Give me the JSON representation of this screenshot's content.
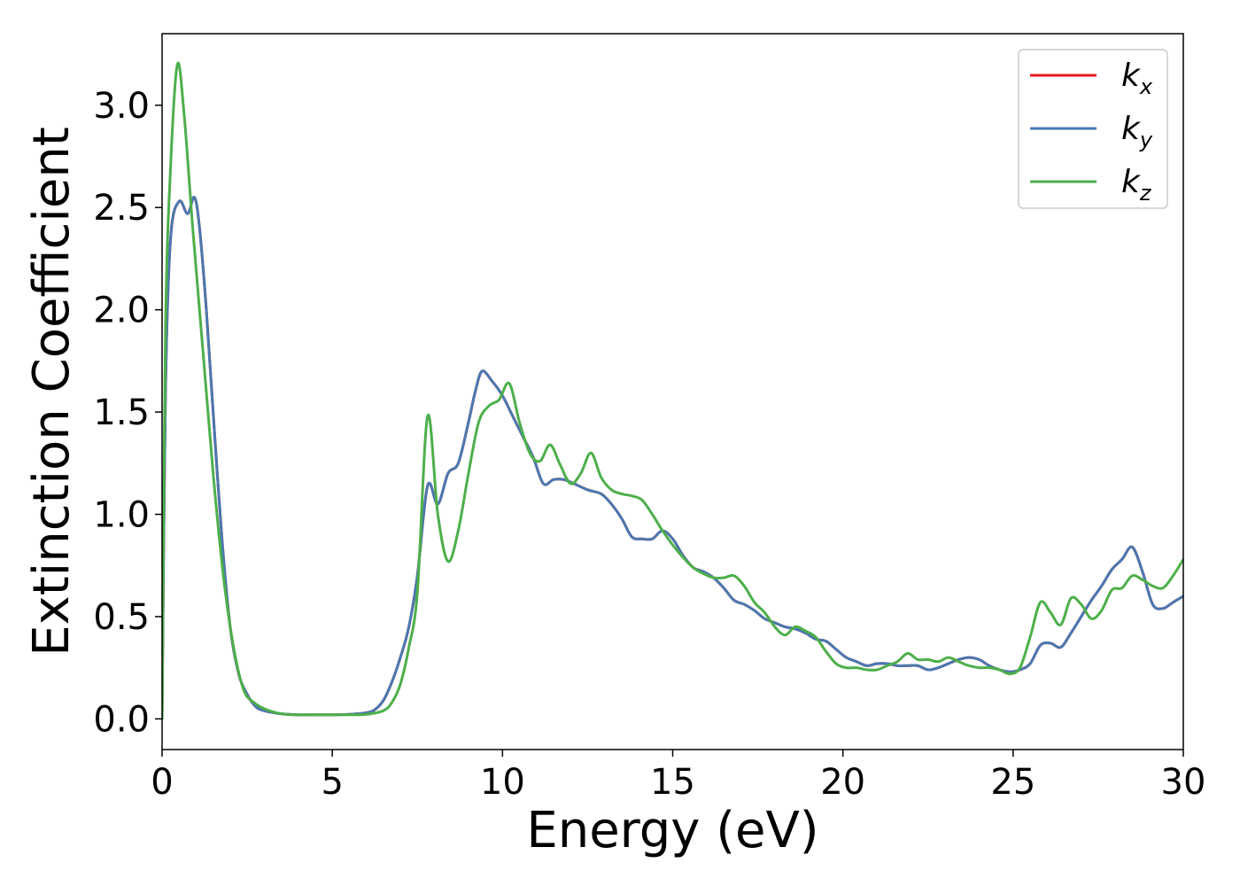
{
  "chart_data": {
    "type": "line",
    "title": "",
    "xlabel": "Energy (eV)",
    "ylabel": "Extinction Coefficient",
    "xlim": [
      0,
      30
    ],
    "ylim": [
      -0.15,
      3.35
    ],
    "xticks": [
      0,
      5,
      10,
      15,
      20,
      25,
      30
    ],
    "xtick_labels": [
      "0",
      "5",
      "10",
      "15",
      "20",
      "25",
      "30"
    ],
    "yticks": [
      0.0,
      0.5,
      1.0,
      1.5,
      2.0,
      2.5,
      3.0
    ],
    "ytick_labels": [
      "0.0",
      "0.5",
      "1.0",
      "1.5",
      "2.0",
      "2.5",
      "3.0"
    ],
    "grid": false,
    "legend_position": "top-right",
    "series": [
      {
        "name": "k_x",
        "legend_main": "k",
        "legend_sub": "x",
        "color": "#e41a1c",
        "x": [
          0,
          0.1,
          0.25,
          0.5,
          0.75,
          0.95,
          1.1,
          1.3,
          1.5,
          1.75,
          2.0,
          2.25,
          2.5,
          2.75,
          3.0,
          3.5,
          4.0,
          4.5,
          5.0,
          5.5,
          6.0,
          6.25,
          6.5,
          6.75,
          7.0,
          7.25,
          7.5,
          7.8,
          8.1,
          8.4,
          8.7,
          9.0,
          9.2,
          9.4,
          9.7,
          10.0,
          10.3,
          10.6,
          10.9,
          11.2,
          11.5,
          11.8,
          12.1,
          12.5,
          12.9,
          13.2,
          13.5,
          13.8,
          14.1,
          14.4,
          14.7,
          15.0,
          15.3,
          15.6,
          15.9,
          16.2,
          16.5,
          16.8,
          17.1,
          17.4,
          17.7,
          18.0,
          18.3,
          18.6,
          18.9,
          19.2,
          19.5,
          19.8,
          20.1,
          20.4,
          20.7,
          21.0,
          21.3,
          21.6,
          21.9,
          22.2,
          22.5,
          22.8,
          23.1,
          23.4,
          23.7,
          24.0,
          24.3,
          24.6,
          24.9,
          25.2,
          25.5,
          25.8,
          26.1,
          26.4,
          26.7,
          27.0,
          27.3,
          27.6,
          27.9,
          28.2,
          28.5,
          28.8,
          29.1,
          29.4,
          29.7,
          30.0
        ],
        "y": [
          0.0,
          1.6,
          2.35,
          2.53,
          2.47,
          2.55,
          2.4,
          2.0,
          1.5,
          0.9,
          0.45,
          0.22,
          0.12,
          0.06,
          0.04,
          0.025,
          0.02,
          0.02,
          0.02,
          0.022,
          0.03,
          0.045,
          0.09,
          0.18,
          0.3,
          0.45,
          0.7,
          1.14,
          1.05,
          1.2,
          1.25,
          1.45,
          1.6,
          1.7,
          1.65,
          1.58,
          1.48,
          1.38,
          1.28,
          1.15,
          1.17,
          1.17,
          1.15,
          1.12,
          1.1,
          1.05,
          0.98,
          0.89,
          0.88,
          0.88,
          0.92,
          0.88,
          0.8,
          0.74,
          0.72,
          0.69,
          0.64,
          0.58,
          0.56,
          0.53,
          0.49,
          0.47,
          0.45,
          0.44,
          0.42,
          0.39,
          0.38,
          0.34,
          0.3,
          0.28,
          0.26,
          0.27,
          0.27,
          0.26,
          0.26,
          0.26,
          0.24,
          0.25,
          0.27,
          0.29,
          0.3,
          0.29,
          0.26,
          0.24,
          0.23,
          0.24,
          0.27,
          0.36,
          0.37,
          0.35,
          0.42,
          0.5,
          0.58,
          0.65,
          0.73,
          0.78,
          0.84,
          0.72,
          0.56,
          0.54,
          0.57,
          0.6
        ]
      },
      {
        "name": "k_y",
        "legend_main": "k",
        "legend_sub": "y",
        "color": "#4a78b0",
        "x": [
          0,
          0.1,
          0.25,
          0.5,
          0.75,
          0.95,
          1.1,
          1.3,
          1.5,
          1.75,
          2.0,
          2.25,
          2.5,
          2.75,
          3.0,
          3.5,
          4.0,
          4.5,
          5.0,
          5.5,
          6.0,
          6.25,
          6.5,
          6.75,
          7.0,
          7.25,
          7.5,
          7.8,
          8.1,
          8.4,
          8.7,
          9.0,
          9.2,
          9.4,
          9.7,
          10.0,
          10.3,
          10.6,
          10.9,
          11.2,
          11.5,
          11.8,
          12.1,
          12.5,
          12.9,
          13.2,
          13.5,
          13.8,
          14.1,
          14.4,
          14.7,
          15.0,
          15.3,
          15.6,
          15.9,
          16.2,
          16.5,
          16.8,
          17.1,
          17.4,
          17.7,
          18.0,
          18.3,
          18.6,
          18.9,
          19.2,
          19.5,
          19.8,
          20.1,
          20.4,
          20.7,
          21.0,
          21.3,
          21.6,
          21.9,
          22.2,
          22.5,
          22.8,
          23.1,
          23.4,
          23.7,
          24.0,
          24.3,
          24.6,
          24.9,
          25.2,
          25.5,
          25.8,
          26.1,
          26.4,
          26.7,
          27.0,
          27.3,
          27.6,
          27.9,
          28.2,
          28.5,
          28.8,
          29.1,
          29.4,
          29.7,
          30.0
        ],
        "y": [
          0.0,
          1.6,
          2.35,
          2.53,
          2.47,
          2.55,
          2.4,
          2.0,
          1.5,
          0.9,
          0.45,
          0.22,
          0.12,
          0.06,
          0.04,
          0.025,
          0.02,
          0.02,
          0.02,
          0.022,
          0.03,
          0.045,
          0.09,
          0.18,
          0.3,
          0.45,
          0.7,
          1.14,
          1.05,
          1.2,
          1.25,
          1.45,
          1.6,
          1.7,
          1.65,
          1.58,
          1.48,
          1.38,
          1.28,
          1.15,
          1.17,
          1.17,
          1.15,
          1.12,
          1.1,
          1.05,
          0.98,
          0.89,
          0.88,
          0.88,
          0.92,
          0.88,
          0.8,
          0.74,
          0.72,
          0.69,
          0.64,
          0.58,
          0.56,
          0.53,
          0.49,
          0.47,
          0.45,
          0.44,
          0.42,
          0.39,
          0.38,
          0.34,
          0.3,
          0.28,
          0.26,
          0.27,
          0.27,
          0.26,
          0.26,
          0.26,
          0.24,
          0.25,
          0.27,
          0.29,
          0.3,
          0.29,
          0.26,
          0.24,
          0.23,
          0.24,
          0.27,
          0.36,
          0.37,
          0.35,
          0.42,
          0.5,
          0.58,
          0.65,
          0.73,
          0.78,
          0.84,
          0.72,
          0.56,
          0.54,
          0.57,
          0.6
        ]
      },
      {
        "name": "k_z",
        "legend_main": "k",
        "legend_sub": "z",
        "color": "#4daf4a",
        "x": [
          0,
          0.1,
          0.25,
          0.45,
          0.65,
          0.9,
          1.2,
          1.5,
          1.8,
          2.1,
          2.4,
          2.7,
          3.0,
          3.5,
          4.0,
          4.5,
          5.0,
          5.5,
          6.0,
          6.5,
          6.75,
          7.0,
          7.25,
          7.5,
          7.8,
          8.1,
          8.4,
          8.7,
          9.0,
          9.3,
          9.6,
          9.9,
          10.2,
          10.5,
          10.8,
          11.1,
          11.4,
          11.7,
          12.0,
          12.3,
          12.6,
          12.9,
          13.2,
          13.5,
          13.8,
          14.1,
          14.4,
          14.7,
          15.0,
          15.3,
          15.6,
          15.9,
          16.2,
          16.5,
          16.8,
          17.1,
          17.4,
          17.7,
          18.0,
          18.3,
          18.6,
          18.9,
          19.2,
          19.5,
          19.8,
          20.1,
          20.4,
          20.7,
          21.0,
          21.3,
          21.6,
          21.9,
          22.2,
          22.5,
          22.8,
          23.1,
          23.4,
          23.7,
          24.0,
          24.3,
          24.6,
          24.9,
          25.2,
          25.5,
          25.8,
          26.1,
          26.4,
          26.7,
          27.0,
          27.3,
          27.6,
          27.9,
          28.2,
          28.5,
          28.8,
          29.1,
          29.4,
          29.7,
          30.0
        ],
        "y": [
          0.0,
          1.9,
          2.7,
          3.2,
          2.95,
          2.4,
          1.8,
          1.2,
          0.7,
          0.35,
          0.14,
          0.08,
          0.05,
          0.025,
          0.02,
          0.02,
          0.02,
          0.02,
          0.022,
          0.04,
          0.08,
          0.17,
          0.35,
          0.62,
          1.48,
          1.0,
          0.77,
          0.92,
          1.2,
          1.45,
          1.53,
          1.56,
          1.64,
          1.45,
          1.3,
          1.26,
          1.34,
          1.24,
          1.15,
          1.2,
          1.3,
          1.18,
          1.12,
          1.1,
          1.09,
          1.07,
          1.0,
          0.92,
          0.85,
          0.79,
          0.74,
          0.71,
          0.69,
          0.69,
          0.7,
          0.65,
          0.57,
          0.52,
          0.45,
          0.41,
          0.45,
          0.43,
          0.4,
          0.33,
          0.27,
          0.25,
          0.25,
          0.24,
          0.24,
          0.26,
          0.28,
          0.32,
          0.29,
          0.29,
          0.28,
          0.3,
          0.28,
          0.26,
          0.25,
          0.25,
          0.24,
          0.22,
          0.25,
          0.4,
          0.57,
          0.52,
          0.46,
          0.59,
          0.56,
          0.49,
          0.53,
          0.63,
          0.64,
          0.7,
          0.68,
          0.65,
          0.64,
          0.7,
          0.78
        ]
      }
    ]
  }
}
